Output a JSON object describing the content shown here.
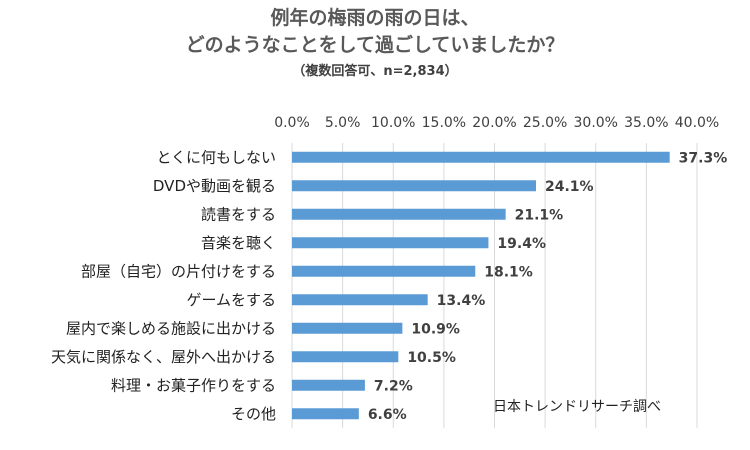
{
  "chart_data": {
    "type": "bar",
    "orientation": "horizontal",
    "title": "例年の梅雨の雨の日は、",
    "title_line2": "どのようなことをして過ごしていましたか？",
    "subtitle": "（複数回答可、n=2,834）",
    "source_note": "日本トレンドリサーチ調べ",
    "categories": [
      "とくに何もしない",
      "DVDや動画を観る",
      "読書をする",
      "音楽を聴く",
      "部屋（自宅）の片付けをする",
      "ゲームをする",
      "屋内で楽しめる施設に出かける",
      "天気に関係なく、屋外へ出かける",
      "料理・お菓子作りをする",
      "その他"
    ],
    "values": [
      37.3,
      24.1,
      21.1,
      19.4,
      18.1,
      13.4,
      10.9,
      10.5,
      7.2,
      6.6
    ],
    "value_labels": [
      "37.3%",
      "24.1%",
      "21.1%",
      "19.4%",
      "18.1%",
      "13.4%",
      "10.9%",
      "10.5%",
      "7.2%",
      "6.6%"
    ],
    "xlim": [
      0,
      40
    ],
    "xticks": [
      0,
      5,
      10,
      15,
      20,
      25,
      30,
      35,
      40
    ],
    "xtick_labels": [
      "0.0%",
      "5.0%",
      "10.0%",
      "15.0%",
      "20.0%",
      "25.0%",
      "30.0%",
      "35.0%",
      "40.0%"
    ],
    "x_axis_position": "top",
    "grid": true,
    "bar_color": "#5B9BD5",
    "grid_color": "#D9D9D9"
  }
}
